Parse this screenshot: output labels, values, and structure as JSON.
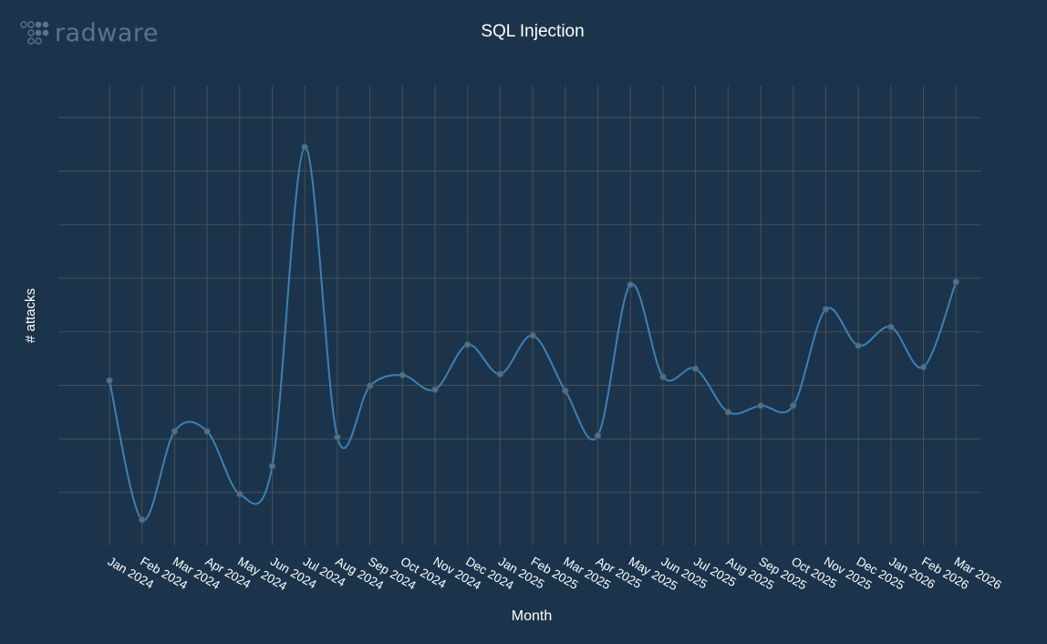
{
  "logo": {
    "text": "radware"
  },
  "chart_data": {
    "type": "line",
    "title": "SQL Injection",
    "xlabel": "Month",
    "ylabel": "# attacks",
    "categories": [
      "Jan 2024",
      "Feb 2024",
      "Mar 2024",
      "Apr 2024",
      "May 2024",
      "Jun 2024",
      "Jul 2024",
      "Aug 2024",
      "Sep 2024",
      "Oct 2024",
      "Nov 2024",
      "Dec 2024",
      "Jan 2025",
      "Feb 2025",
      "Mar 2025",
      "Apr 2025",
      "May 2025",
      "Jun 2025",
      "Jul 2025",
      "Aug 2025",
      "Sep 2025",
      "Oct 2025",
      "Nov 2025",
      "Dec 2025",
      "Jan 2026",
      "Feb 2026",
      "Mar 2026"
    ],
    "series": [
      {
        "values": [
          3.09,
          0.49,
          2.14,
          2.14,
          0.97,
          1.49,
          7.45,
          2.03,
          2.99,
          3.19,
          2.92,
          3.76,
          3.21,
          3.93,
          2.9,
          2.06,
          4.88,
          3.16,
          3.31,
          2.5,
          2.62,
          2.62,
          4.42,
          3.74,
          4.09,
          3.34,
          4.93
        ]
      }
    ],
    "ylim": [
      0,
      8
    ],
    "y_tick_labels_shown": false,
    "grid": true,
    "color": "#3f7fb5",
    "grid_color": "#4a4f55",
    "background": "#1b344b"
  }
}
